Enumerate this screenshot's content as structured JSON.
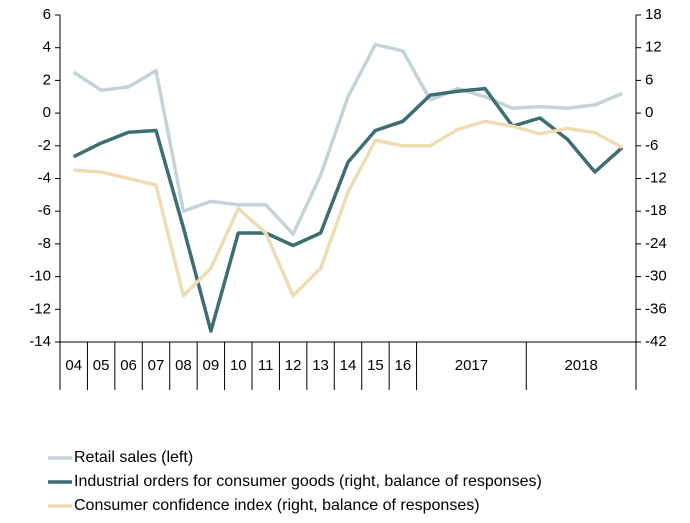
{
  "chart_data": {
    "type": "line",
    "categories": [
      "04",
      "05",
      "06",
      "07",
      "08",
      "09",
      "10",
      "11",
      "12",
      "13",
      "14",
      "15",
      "16",
      "2017",
      null,
      null,
      null,
      "2018",
      null,
      null,
      null
    ],
    "series": [
      {
        "name": "Retail sales (left)",
        "color": "#c5d3d9",
        "axis": "y",
        "values": [
          2.5,
          1.4,
          1.6,
          2.6,
          -6,
          -5.4,
          -5.6,
          -5.6,
          -7.4,
          -3.8,
          1.0,
          4.2,
          3.8,
          0.8,
          1.5,
          1.0,
          0.3,
          0.4,
          0.3,
          0.5,
          1.2
        ]
      },
      {
        "name": "Industrial orders for consumer goods (right, balance of responses)",
        "color": "#3d6e72",
        "axis": "y2",
        "values": [
          -8,
          -5.5,
          -3.5,
          -3.2,
          -21,
          -40,
          -22,
          -22,
          -24.3,
          -22,
          -9,
          -3.2,
          -1.5,
          3.3,
          4,
          4.5,
          -2.4,
          -0.9,
          -4.8,
          -10.8,
          -6.3
        ]
      },
      {
        "name": "Consumer confidence index (right, balance of responses)",
        "color": "#efdcb3",
        "axis": "y2",
        "values": [
          -10.5,
          -10.8,
          -12,
          -13.2,
          -33.5,
          -28.5,
          -17.5,
          -22,
          -33.5,
          -28.5,
          -14.5,
          -5,
          -6,
          -6,
          -3,
          -1.5,
          -2.4,
          -3.8,
          -2.8,
          -3.6,
          -6.3
        ]
      }
    ],
    "ylim": [
      -14,
      6
    ],
    "yticks": [
      6,
      4,
      2,
      0,
      -2,
      -4,
      -6,
      -8,
      -10,
      -12,
      -14
    ],
    "y2lim": [
      -42,
      18
    ],
    "y2ticks": [
      18,
      12,
      6,
      0,
      -6,
      -12,
      -18,
      -24,
      -30,
      -36,
      -42
    ]
  }
}
